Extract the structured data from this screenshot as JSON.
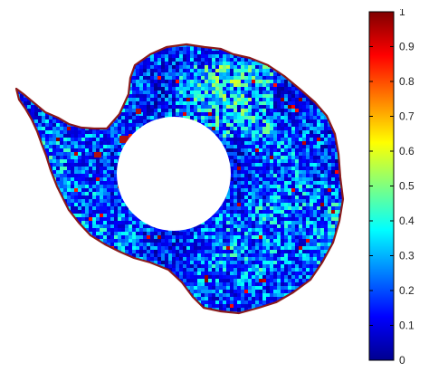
{
  "colormap": "jet",
  "colorbar": {
    "min": 0,
    "max": 1,
    "orientation": "vertical",
    "placement": "right",
    "tick_labels": [
      "0",
      "0.1",
      "0.2",
      "0.3",
      "0.4",
      "0.5",
      "0.6",
      "0.7",
      "0.8",
      "0.9",
      "1"
    ]
  },
  "map": {
    "region": "Antarctica",
    "coastline_color": "#8b1a1a",
    "data_gap": "white circular hole centred on the South Pole",
    "dominant_values": "mostly 0.0–0.4 (dark to light blue) with scattered highs up to ~0.7 (yellow) and isolated red patches along the coast"
  },
  "colors": {
    "background": "#ffffff",
    "jet_stops": [
      "#00008f",
      "#0000ff",
      "#00ffff",
      "#ffff00",
      "#ff0000",
      "#800000"
    ]
  }
}
